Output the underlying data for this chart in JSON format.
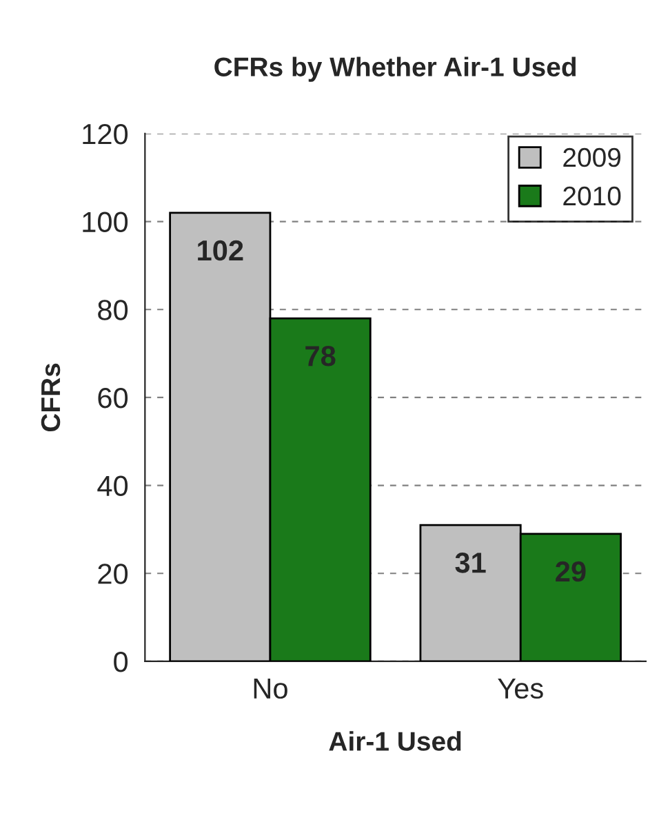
{
  "chart_data": {
    "type": "bar",
    "title": "CFRs by Whether Air-1 Used",
    "xlabel": "Air-1 Used",
    "ylabel": "CFRs",
    "categories": [
      "No",
      "Yes"
    ],
    "series": [
      {
        "name": "2009",
        "color": "#bfbfbf",
        "values": [
          102,
          31
        ]
      },
      {
        "name": "2010",
        "color": "#1a7a1a",
        "values": [
          78,
          29
        ]
      }
    ],
    "ylim": [
      0,
      120
    ],
    "yticks": [
      0,
      20,
      40,
      60,
      80,
      100,
      120
    ],
    "grid": "y",
    "legend": "top right",
    "data_labels": true
  }
}
